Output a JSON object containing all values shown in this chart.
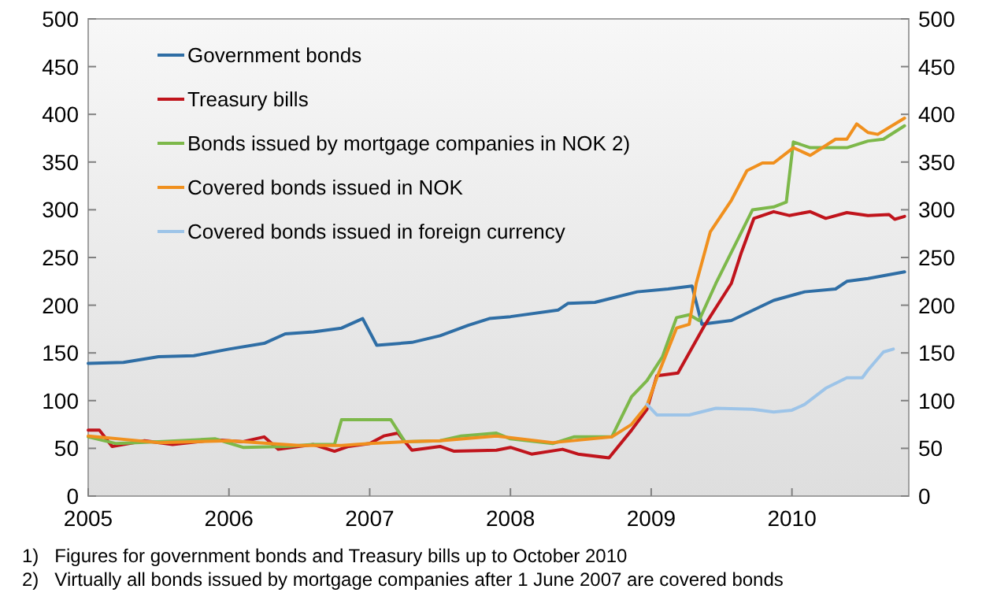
{
  "chart_data": {
    "type": "line",
    "xlim": [
      2005,
      2010.83
    ],
    "xticks": [
      2005,
      2006,
      2007,
      2008,
      2009,
      2010
    ],
    "ylim": [
      0,
      500
    ],
    "yticks": [
      0,
      50,
      100,
      150,
      200,
      250,
      300,
      350,
      400,
      450,
      500
    ],
    "y2lim": [
      0,
      500
    ],
    "y2ticks": [
      0,
      50,
      100,
      150,
      200,
      250,
      300,
      350,
      400,
      450,
      500
    ],
    "grid": false,
    "legend": "top left",
    "marker": "none",
    "line_style": "solid",
    "series": [
      {
        "name": "Government bonds",
        "color": "#2f6ea5",
        "x": [
          2005,
          2005.25,
          2005.5,
          2005.75,
          2006,
          2006.25,
          2006.4,
          2006.6,
          2006.8,
          2006.95,
          2007.05,
          2007.3,
          2007.5,
          2007.7,
          2007.85,
          2008,
          2008.34,
          2008.41,
          2008.6,
          2008.9,
          2009.12,
          2009.29,
          2009.36,
          2009.57,
          2009.87,
          2010.09,
          2010.31,
          2010.39,
          2010.54,
          2010.8
        ],
        "values": [
          139,
          140,
          146,
          147,
          154,
          160,
          170,
          172,
          176,
          186,
          158,
          161,
          168,
          179,
          186,
          188,
          195,
          202,
          203,
          214,
          217,
          220,
          180,
          184,
          205,
          214,
          217,
          225,
          228,
          235
        ]
      },
      {
        "name": "Treasury bills",
        "color": "#c0141c",
        "x": [
          2005,
          2005.08,
          2005.17,
          2005.4,
          2005.6,
          2005.9,
          2006.1,
          2006.25,
          2006.35,
          2006.6,
          2006.75,
          2006.85,
          2007,
          2007.1,
          2007.2,
          2007.3,
          2007.5,
          2007.6,
          2007.9,
          2008,
          2008.15,
          2008.37,
          2008.48,
          2008.7,
          2008.86,
          2008.97,
          2009.04,
          2009.19,
          2009.38,
          2009.57,
          2009.64,
          2009.73,
          2009.87,
          2009.98,
          2010.13,
          2010.24,
          2010.39,
          2010.54,
          2010.69,
          2010.73,
          2010.8
        ],
        "values": [
          69,
          69,
          52,
          58,
          54,
          59,
          57,
          62,
          49,
          54,
          47,
          52,
          55,
          63,
          66,
          48,
          52,
          47,
          48,
          51,
          44,
          49,
          44,
          40,
          69,
          91,
          126,
          129,
          179,
          223,
          255,
          291,
          298,
          294,
          298,
          291,
          297,
          294,
          295,
          290,
          293
        ]
      },
      {
        "name": "Bonds issued by mortgage companies in NOK 2)",
        "color": "#7db84a",
        "x": [
          2005,
          2005.2,
          2005.5,
          2005.9,
          2006.1,
          2006.4,
          2006.6,
          2006.75,
          2006.8,
          2007.15,
          2007.25,
          2007.5,
          2007.65,
          2007.9,
          2008,
          2008.3,
          2008.45,
          2008.72,
          2008.86,
          2008.97,
          2009.08,
          2009.18,
          2009.27,
          2009.34,
          2009.46,
          2009.72,
          2009.87,
          2009.96,
          2010.01,
          2010.13,
          2010.39,
          2010.54,
          2010.65,
          2010.8
        ],
        "values": [
          62,
          55,
          57,
          60,
          51,
          52,
          54,
          54,
          80,
          80,
          57,
          58,
          63,
          66,
          60,
          55,
          62,
          62,
          104,
          121,
          146,
          187,
          190,
          184,
          223,
          300,
          303,
          308,
          371,
          365,
          365,
          372,
          374,
          388
        ]
      },
      {
        "name": "Covered bonds issued in NOK",
        "color": "#f0901e",
        "x": [
          2005,
          2005.5,
          2006,
          2006.5,
          2006.8,
          2007,
          2007.25,
          2007.5,
          2007.9,
          2008.3,
          2008.72,
          2008.86,
          2008.97,
          2009.04,
          2009.18,
          2009.27,
          2009.32,
          2009.42,
          2009.57,
          2009.68,
          2009.79,
          2009.87,
          2010.01,
          2010.13,
          2010.31,
          2010.39,
          2010.46,
          2010.54,
          2010.61,
          2010.8
        ],
        "values": [
          63,
          56,
          58,
          53,
          53,
          55,
          57,
          58,
          63,
          56,
          62,
          75,
          95,
          124,
          176,
          180,
          223,
          277,
          310,
          341,
          349,
          349,
          365,
          357,
          374,
          374,
          390,
          381,
          379,
          396
        ]
      },
      {
        "name": "Covered bonds issued in foreign currency",
        "color": "#9dc4e8",
        "x": [
          2008.97,
          2009.04,
          2009.27,
          2009.46,
          2009.72,
          2009.87,
          2010,
          2010.09,
          2010.24,
          2010.39,
          2010.5,
          2010.54,
          2010.65,
          2010.72
        ],
        "values": [
          96,
          85,
          85,
          92,
          91,
          88,
          90,
          96,
          113,
          124,
          124,
          132,
          151,
          154
        ]
      }
    ],
    "annotations": [
      "1)   Figures for government bonds and Treasury bills up to October 2010",
      "2)   Virtually all bonds issued by mortgage companies after 1 June 2007 are covered bonds"
    ]
  }
}
